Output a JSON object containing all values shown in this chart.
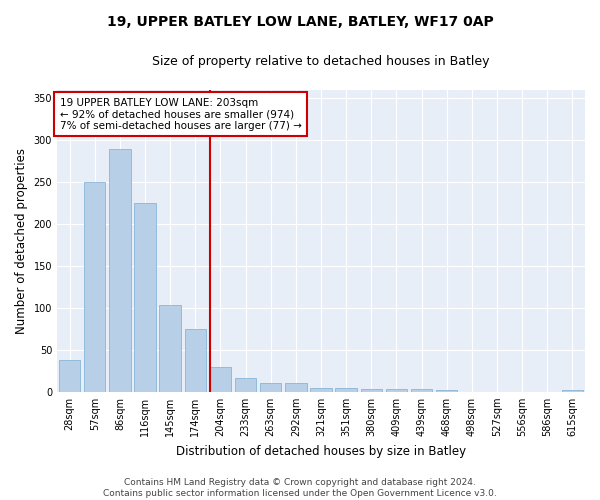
{
  "title": "19, UPPER BATLEY LOW LANE, BATLEY, WF17 0AP",
  "subtitle": "Size of property relative to detached houses in Batley",
  "xlabel": "Distribution of detached houses by size in Batley",
  "ylabel": "Number of detached properties",
  "categories": [
    "28sqm",
    "57sqm",
    "86sqm",
    "116sqm",
    "145sqm",
    "174sqm",
    "204sqm",
    "233sqm",
    "263sqm",
    "292sqm",
    "321sqm",
    "351sqm",
    "380sqm",
    "409sqm",
    "439sqm",
    "468sqm",
    "498sqm",
    "527sqm",
    "556sqm",
    "586sqm",
    "615sqm"
  ],
  "values": [
    38,
    250,
    290,
    225,
    103,
    75,
    30,
    16,
    10,
    10,
    5,
    4,
    3,
    3,
    3,
    2,
    0,
    0,
    0,
    0,
    2
  ],
  "bar_color": "#b8cfe8",
  "bar_edge_color": "#7aadd4",
  "vline_index": 6,
  "vline_color": "#cc0000",
  "annotation_line1": "19 UPPER BATLEY LOW LANE: 203sqm",
  "annotation_line2": "← 92% of detached houses are smaller (974)",
  "annotation_line3": "7% of semi-detached houses are larger (77) →",
  "annotation_box_color": "white",
  "annotation_box_edge_color": "#cc0000",
  "ylim": [
    0,
    360
  ],
  "yticks": [
    0,
    50,
    100,
    150,
    200,
    250,
    300,
    350
  ],
  "footer_line1": "Contains HM Land Registry data © Crown copyright and database right 2024.",
  "footer_line2": "Contains public sector information licensed under the Open Government Licence v3.0.",
  "plot_background_color": "#e8eef7",
  "grid_color": "#ffffff",
  "title_fontsize": 10,
  "subtitle_fontsize": 9,
  "axis_label_fontsize": 8.5,
  "tick_fontsize": 7,
  "annotation_fontsize": 7.5,
  "footer_fontsize": 6.5
}
